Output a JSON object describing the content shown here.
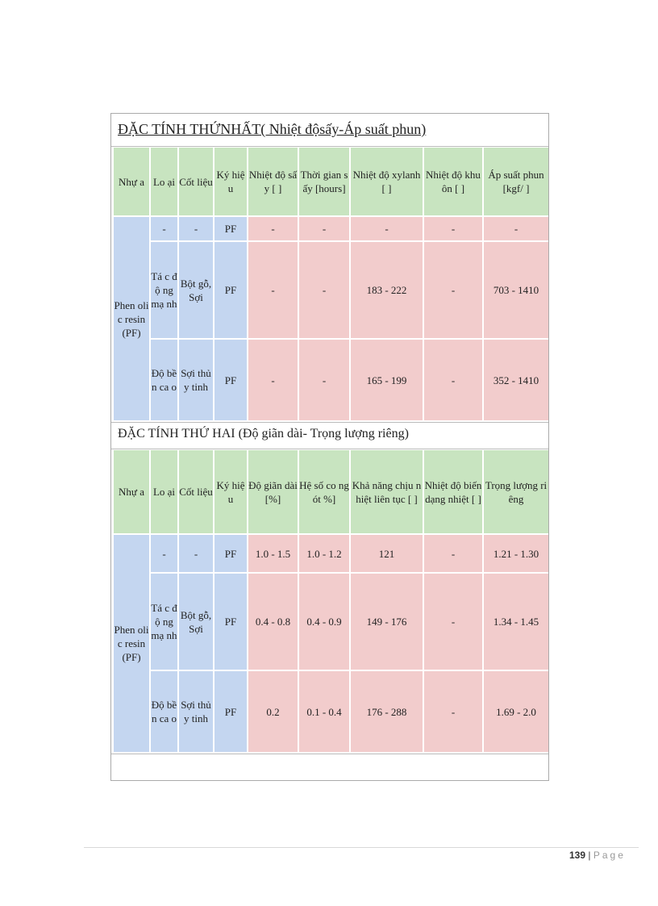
{
  "section1": {
    "title": "ĐẶC TÍNH THỨNHẤT( Nhiệt độsấy-Áp suất phun)",
    "headers": [
      "Nhự a",
      "Lo ại",
      "Cốt liệu",
      "Ký hiệu",
      "Nhiệt độ sấy [ ]",
      "Thời gian sấy [hours]",
      "Nhiệt độ xylanh [ ]",
      "Nhiệt độ khuôn [ ]",
      "Áp suất phun [kgf/ ]"
    ],
    "resin": "Phen olic resin (PF)",
    "rows": [
      [
        "-",
        "-",
        "PF",
        "-",
        "-",
        "-",
        "-",
        "-"
      ],
      [
        "Tá c độ ng mạ nh",
        "Bột gỗ, Sợi",
        "PF",
        "-",
        "-",
        "183 - 222",
        "-",
        "703 - 1410"
      ],
      [
        "Độ bề n ca o",
        "Sợi thủy tinh",
        "PF",
        "-",
        "-",
        "165 - 199",
        "-",
        "352 - 1410"
      ]
    ]
  },
  "section2": {
    "title": "ĐẶC TÍNH THỨ HAI (Độ giãn dài- Trọng lượng riêng)",
    "headers": [
      "Nhự a",
      "Lo ại",
      "Cốt liệu",
      "Ký hiệu",
      "Độ giãn dài [%]",
      "Hệ số co ngót %]",
      "Khả năng chịu nhiệt liên tục [ ]",
      "Nhiệt độ biến dạng nhiệt [ ]",
      "Trọng lượng riêng"
    ],
    "resin": "Phen olic resin (PF)",
    "rows": [
      [
        "-",
        "-",
        "PF",
        "1.0 - 1.5",
        "1.0 - 1.2",
        "121",
        "-",
        "1.21 - 1.30"
      ],
      [
        "Tá c độ ng mạ nh",
        "Bột gỗ, Sợi",
        "PF",
        "0.4 - 0.8",
        "0.4 - 0.9",
        "149 - 176",
        "-",
        "1.34 - 1.45"
      ],
      [
        "Độ bề n ca o",
        "Sợi thủy tinh",
        "PF",
        "0.2",
        "0.1 - 0.4",
        "176 - 288",
        "-",
        "1.69 - 2.0"
      ]
    ]
  },
  "footer": {
    "page_number": "139",
    "separator": "|",
    "page_label": "Page"
  },
  "colors": {
    "header": "#c8e4c0",
    "label": "#c4d6f0",
    "value": "#f2cccc"
  }
}
